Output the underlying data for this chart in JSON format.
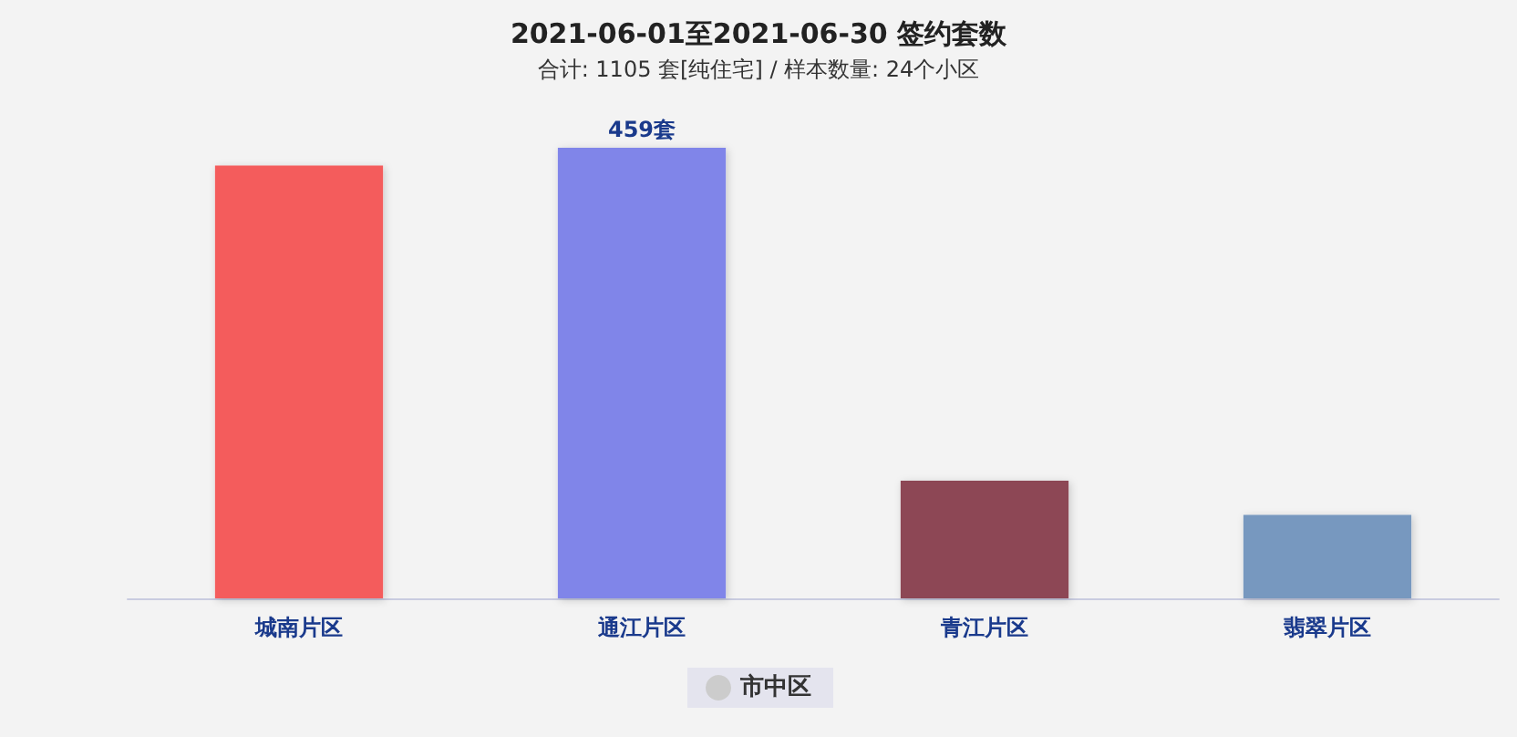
{
  "chart_data": {
    "type": "bar",
    "title": "2021-06-01至2021-06-30 签约套数",
    "subtitle": "合计: 1105 套[纯住宅] / 样本数量: 24个小区",
    "categories": [
      "城南片区",
      "通江片区",
      "青江片区",
      "翡翠片区"
    ],
    "series": [
      {
        "name": "市中区",
        "color": "#cccccc",
        "colors": [
          "#f45b5b",
          "#8085e9",
          "#8d4654",
          "#7798bf"
        ],
        "values": [
          441,
          459,
          120,
          85
        ],
        "value_labels": [
          null,
          "459套",
          null,
          null
        ]
      }
    ],
    "legend": "bottom",
    "tick_labels": "x"
  }
}
